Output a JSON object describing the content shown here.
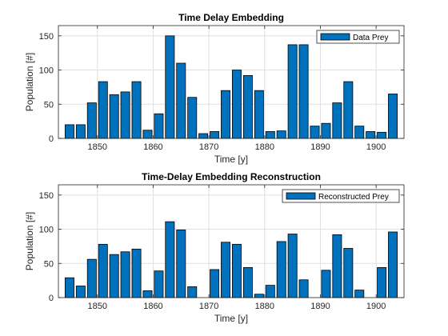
{
  "chart_data": [
    {
      "type": "bar",
      "title": "Time Delay Embedding",
      "xlabel": "Time [y]",
      "ylabel": "Population [#]",
      "xlim": [
        1843,
        1905
      ],
      "ylim": [
        0,
        165
      ],
      "xticks": [
        1850,
        1860,
        1870,
        1880,
        1890,
        1900
      ],
      "yticks": [
        0,
        50,
        100,
        150
      ],
      "grid": true,
      "legend_position": "top-right",
      "bar_color": "#0072BD",
      "series": [
        {
          "name": "Data Prey",
          "x": [
            1845,
            1847,
            1849,
            1851,
            1853,
            1855,
            1857,
            1859,
            1861,
            1863,
            1865,
            1867,
            1869,
            1871,
            1873,
            1875,
            1877,
            1879,
            1881,
            1883,
            1885,
            1887,
            1889,
            1891,
            1893,
            1895,
            1897,
            1899,
            1901,
            1903
          ],
          "values": [
            20,
            20,
            52,
            83,
            64,
            68,
            83,
            12,
            36,
            150,
            110,
            60,
            7,
            10,
            70,
            100,
            92,
            70,
            10,
            11,
            137,
            137,
            18,
            22,
            52,
            83,
            18,
            10,
            9,
            65
          ]
        }
      ]
    },
    {
      "type": "bar",
      "title": "Time-Delay Embedding Reconstruction",
      "xlabel": "Time [y]",
      "ylabel": "Population [#]",
      "xlim": [
        1843,
        1905
      ],
      "ylim": [
        0,
        165
      ],
      "xticks": [
        1850,
        1860,
        1870,
        1880,
        1890,
        1900
      ],
      "yticks": [
        0,
        50,
        100,
        150
      ],
      "grid": true,
      "legend_position": "top-right",
      "bar_color": "#0072BD",
      "series": [
        {
          "name": "Reconstructed Prey",
          "x": [
            1845,
            1847,
            1849,
            1851,
            1853,
            1855,
            1857,
            1859,
            1861,
            1863,
            1865,
            1867,
            1869,
            1871,
            1873,
            1875,
            1877,
            1879,
            1881,
            1883,
            1885,
            1887,
            1889,
            1891,
            1893,
            1895,
            1897,
            1899,
            1901,
            1903
          ],
          "values": [
            29,
            17,
            56,
            78,
            63,
            67,
            71,
            10,
            39,
            111,
            99,
            16,
            0,
            41,
            81,
            78,
            44,
            5,
            18,
            82,
            93,
            26,
            0,
            40,
            92,
            72,
            11,
            0,
            44,
            96
          ]
        }
      ]
    }
  ]
}
